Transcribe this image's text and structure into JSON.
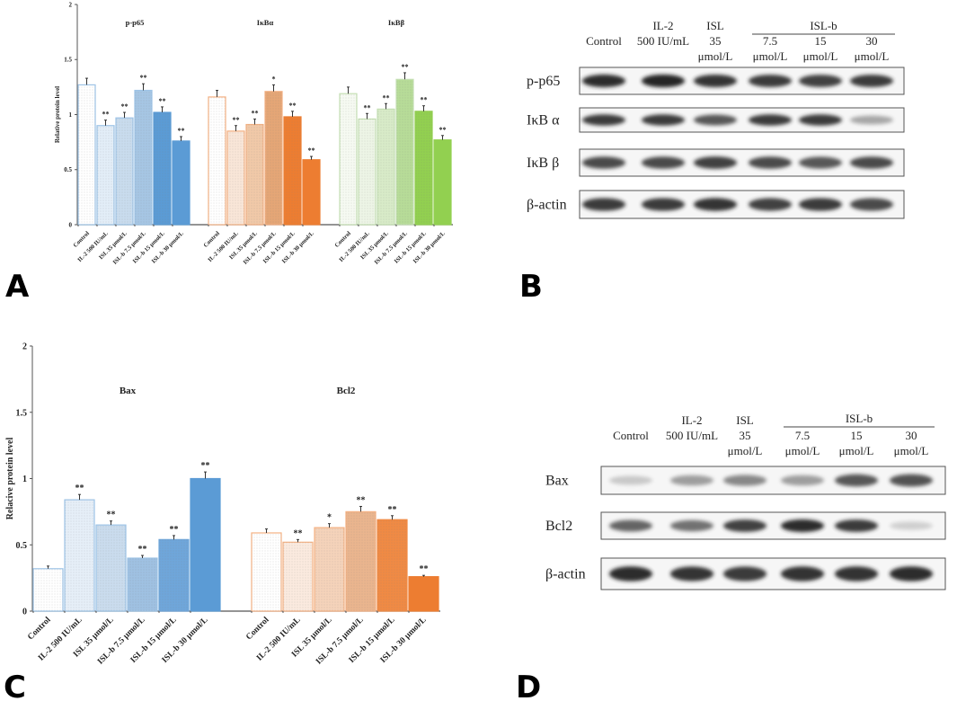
{
  "panels": {
    "A": "A",
    "B": "B",
    "C": "C",
    "D": "D"
  },
  "chart_data": [
    {
      "type": "bar",
      "panel": "A",
      "ylabel": "Relative protein level",
      "ylim": [
        0,
        2
      ],
      "yticks": [
        "0",
        "0.5",
        "1",
        "1.5",
        "2"
      ],
      "categories": [
        "Control",
        "IL-2 500 IU/mL",
        "ISL 35 μmol/L",
        "ISL-b 7.5 μmol/L",
        "ISL-b 15 μmol/L",
        "ISL-b 30 μmol/L"
      ],
      "series": [
        {
          "name": "p-p65",
          "values": [
            1.27,
            0.9,
            0.97,
            1.22,
            1.02,
            0.76
          ],
          "errors": [
            0.06,
            0.05,
            0.05,
            0.06,
            0.05,
            0.04
          ],
          "significance": [
            "",
            "**",
            "**",
            "**",
            "**",
            "**"
          ],
          "colors": [
            "#ffffff",
            "#e3eef8",
            "#c9dcee",
            "#a6c6e4",
            "#5b9bd5",
            "#5b9bd5"
          ],
          "stroke": "#9dc3e6"
        },
        {
          "name": "IκBα",
          "values": [
            1.16,
            0.85,
            0.91,
            1.21,
            0.98,
            0.59
          ],
          "errors": [
            0.06,
            0.05,
            0.05,
            0.06,
            0.05,
            0.03
          ],
          "significance": [
            "",
            "**",
            "**",
            "*",
            "**",
            "**"
          ],
          "colors": [
            "#ffffff",
            "#f9e6d8",
            "#f1c9a8",
            "#e5a676",
            "#ed7d31",
            "#ed7d31"
          ],
          "stroke": "#f4b183"
        },
        {
          "name": "IκBβ",
          "values": [
            1.19,
            0.96,
            1.05,
            1.32,
            1.03,
            0.77
          ],
          "errors": [
            0.06,
            0.05,
            0.05,
            0.06,
            0.05,
            0.04
          ],
          "significance": [
            "",
            "**",
            "**",
            "**",
            "**",
            "**"
          ],
          "colors": [
            "#f6faf2",
            "#edf5e6",
            "#d8ebc8",
            "#b7dc98",
            "#92d050",
            "#92d050"
          ],
          "stroke": "#c5e0b4"
        }
      ]
    },
    {
      "type": "bar",
      "panel": "C",
      "ylabel": "Relacive protein level",
      "ylim": [
        0,
        2
      ],
      "yticks": [
        "0",
        "0.5",
        "1",
        "1.5",
        "2"
      ],
      "categories": [
        "Control",
        "IL-2 500 IU/mL",
        "ISL 35 μmol/L",
        "ISL-b 7.5 μmol/L",
        "ISL-b 15 μmol/L",
        "ISL-b 30 μmol/L"
      ],
      "series": [
        {
          "name": "Bax",
          "values": [
            0.32,
            0.84,
            0.65,
            0.4,
            0.54,
            1.0
          ],
          "errors": [
            0.02,
            0.04,
            0.03,
            0.02,
            0.03,
            0.05
          ],
          "significance": [
            "",
            "**",
            "**",
            "**",
            "**",
            "**"
          ],
          "colors": [
            "#ffffff",
            "#e6eff8",
            "#cadcee",
            "#9fc1e2",
            "#6fa6da",
            "#5b9bd5"
          ],
          "stroke": "#9dc3e6"
        },
        {
          "name": "Bcl2",
          "values": [
            0.59,
            0.52,
            0.63,
            0.75,
            0.69,
            0.26
          ],
          "errors": [
            0.03,
            0.02,
            0.03,
            0.04,
            0.03,
            0.01
          ],
          "significance": [
            "",
            "**",
            "*",
            "**",
            "**",
            "**"
          ],
          "colors": [
            "#ffffff",
            "#fbeadf",
            "#f5d3ba",
            "#eab58e",
            "#f08a44",
            "#ed7d31"
          ],
          "stroke": "#f4b183"
        }
      ]
    }
  ],
  "blots": [
    {
      "panel": "B",
      "headers": [
        [
          "",
          "Control",
          ""
        ],
        [
          "IL-2",
          "500 IU/mL",
          ""
        ],
        [
          "ISL",
          "35",
          "μmol/L"
        ],
        [
          "",
          "7.5",
          "μmol/L"
        ],
        [
          "",
          "15",
          "μmol/L"
        ],
        [
          "",
          "30",
          "μmol/L"
        ]
      ],
      "group_label": "ISL-b",
      "rows": [
        {
          "label": "p-p65",
          "band_intensity": [
            0.95,
            0.97,
            0.92,
            0.9,
            0.88,
            0.9
          ]
        },
        {
          "label": "IκB α",
          "band_intensity": [
            0.9,
            0.9,
            0.8,
            0.9,
            0.9,
            0.45
          ]
        },
        {
          "label": "IκB β",
          "band_intensity": [
            0.85,
            0.85,
            0.88,
            0.85,
            0.8,
            0.85
          ]
        },
        {
          "label": "β-actin",
          "band_intensity": [
            0.9,
            0.9,
            0.92,
            0.88,
            0.9,
            0.85
          ]
        }
      ]
    },
    {
      "panel": "D",
      "headers": [
        [
          "",
          "Control",
          ""
        ],
        [
          "IL-2",
          "500 IU/mL",
          ""
        ],
        [
          "ISL",
          "35",
          "μmol/L"
        ],
        [
          "",
          "7.5",
          "μmol/L"
        ],
        [
          "",
          "15",
          "μmol/L"
        ],
        [
          "",
          "30",
          "μmol/L"
        ]
      ],
      "group_label": "ISL-b",
      "rows": [
        {
          "label": "Bax",
          "band_intensity": [
            0.25,
            0.5,
            0.6,
            0.5,
            0.8,
            0.82
          ]
        },
        {
          "label": "Bcl2",
          "band_intensity": [
            0.75,
            0.7,
            0.88,
            0.95,
            0.9,
            0.2
          ]
        },
        {
          "label": "β-actin",
          "band_intensity": [
            0.95,
            0.92,
            0.9,
            0.93,
            0.93,
            0.95
          ]
        }
      ]
    }
  ]
}
